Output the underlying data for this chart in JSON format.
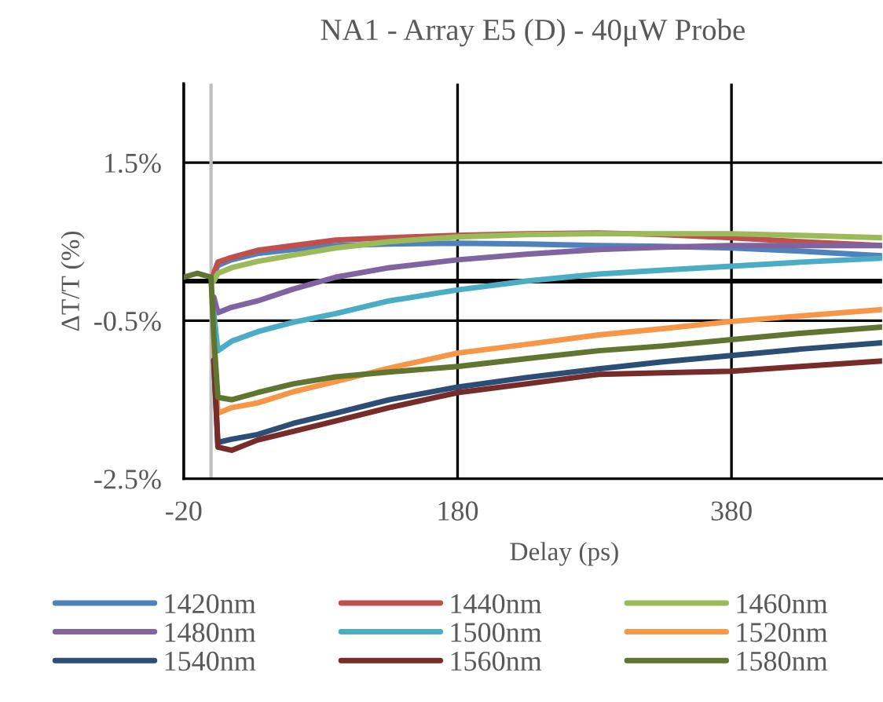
{
  "chart_data": {
    "type": "line",
    "title": "NA1 - Array E5 (D) - 40μW Probe",
    "xlabel": "Delay (ps)",
    "ylabel": "ΔT/T (%)",
    "x": [
      -20,
      -10,
      0,
      2,
      5,
      15,
      34,
      60,
      91,
      130,
      180,
      230,
      283,
      330,
      380,
      430,
      490
    ],
    "series": [
      {
        "name": "1420nm",
        "color": "#4f81bd",
        "values": [
          null,
          null,
          null,
          0.08,
          0.2,
          0.27,
          0.35,
          0.4,
          0.45,
          0.47,
          0.48,
          0.47,
          0.45,
          0.44,
          0.42,
          0.38,
          0.32
        ]
      },
      {
        "name": "1440nm",
        "color": "#c0504d",
        "values": [
          null,
          null,
          null,
          0.1,
          0.24,
          0.3,
          0.39,
          0.45,
          0.52,
          0.55,
          0.58,
          0.6,
          0.61,
          0.59,
          0.55,
          0.5,
          0.45
        ]
      },
      {
        "name": "1460nm",
        "color": "#9bbb59",
        "values": [
          null,
          null,
          null,
          0.0,
          0.1,
          0.17,
          0.25,
          0.33,
          0.42,
          0.5,
          0.56,
          0.59,
          0.6,
          0.6,
          0.6,
          0.58,
          0.55
        ]
      },
      {
        "name": "1480nm",
        "color": "#8064a2",
        "values": [
          null,
          null,
          null,
          -0.2,
          -0.4,
          -0.33,
          -0.25,
          -0.1,
          0.05,
          0.17,
          0.27,
          0.34,
          0.4,
          0.43,
          0.45,
          0.45,
          0.45
        ]
      },
      {
        "name": "1500nm",
        "color": "#4bacc6",
        "values": [
          null,
          null,
          null,
          -0.4,
          -0.88,
          -0.76,
          -0.64,
          -0.52,
          -0.41,
          -0.25,
          -0.11,
          0.0,
          0.09,
          0.14,
          0.19,
          0.24,
          0.29
        ]
      },
      {
        "name": "1520nm",
        "color": "#f79646",
        "values": [
          null,
          null,
          null,
          -0.8,
          -1.67,
          -1.6,
          -1.54,
          -1.4,
          -1.27,
          -1.1,
          -0.91,
          -0.8,
          -0.68,
          -0.6,
          -0.51,
          -0.44,
          -0.36
        ]
      },
      {
        "name": "1540nm",
        "color": "#2c4d75",
        "values": [
          null,
          null,
          null,
          -1.0,
          -2.04,
          -2.0,
          -1.94,
          -1.8,
          -1.67,
          -1.5,
          -1.34,
          -1.22,
          -1.11,
          -1.02,
          -0.94,
          -0.86,
          -0.78
        ]
      },
      {
        "name": "1560nm",
        "color": "#772c2a",
        "values": [
          null,
          null,
          null,
          -1.0,
          -2.1,
          -2.14,
          -2.01,
          -1.9,
          -1.77,
          -1.6,
          -1.41,
          -1.3,
          -1.18,
          -1.16,
          -1.14,
          -1.08,
          -1.01
        ]
      },
      {
        "name": "1580nm",
        "color": "#5f7530",
        "values": [
          0.05,
          0.1,
          0.05,
          -0.7,
          -1.47,
          -1.5,
          -1.41,
          -1.3,
          -1.21,
          -1.15,
          -1.08,
          -0.98,
          -0.88,
          -0.82,
          -0.74,
          -0.66,
          -0.58
        ]
      }
    ],
    "xlim": [
      -20,
      490
    ],
    "xticks": [
      -20,
      180,
      380
    ],
    "ylim": [
      -2.5,
      2.5
    ],
    "yticks": [
      {
        "value": -2.5,
        "label": "-2.5%"
      },
      {
        "value": -0.5,
        "label": "-0.5%"
      },
      {
        "value": 1.5,
        "label": "1.5%"
      }
    ],
    "ref_lines": [
      {
        "axis": "y",
        "value": 0,
        "color": "#000000"
      },
      {
        "axis": "x",
        "value": 0,
        "color": "#bfbfbf"
      }
    ],
    "grid": true,
    "legend": "bottom",
    "marker": "none",
    "line_style": "solid"
  }
}
